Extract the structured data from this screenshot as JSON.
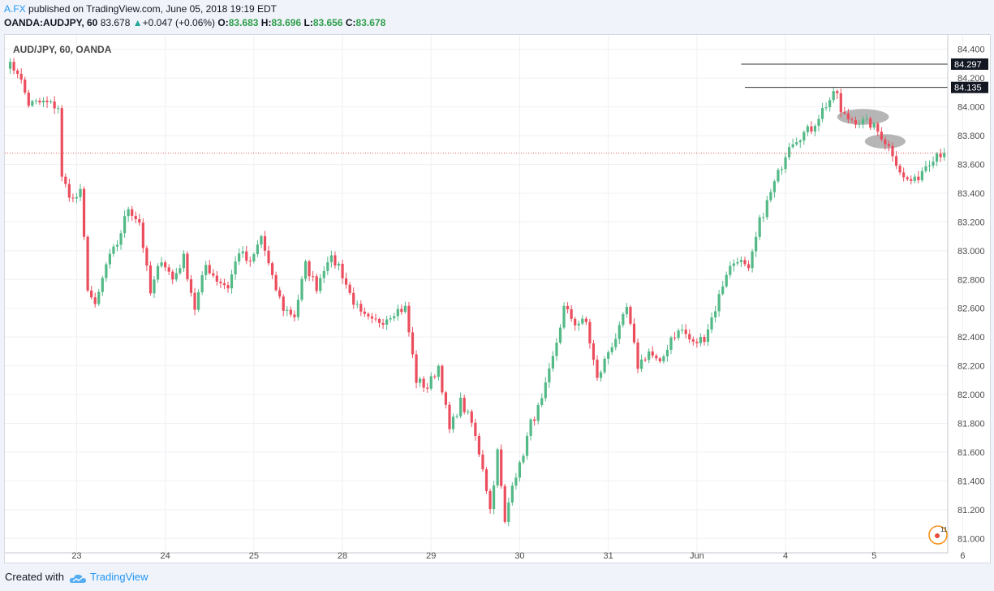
{
  "header": {
    "author": "A.FX",
    "published_text": "published on TradingView.com, June 05, 2018 19:19 EDT",
    "symbol_line": "OANDA:AUDJPY, 60",
    "last": "83.678",
    "arrow": "▲",
    "change": "+0.047 (+0.06%)",
    "o_label": "O:",
    "o_value": "83.683",
    "h_label": "H:",
    "h_value": "83.696",
    "l_label": "L:",
    "l_value": "83.656",
    "c_label": "C:",
    "c_value": "83.678"
  },
  "footer": {
    "created_with": "Created with",
    "brand": "TradingView"
  },
  "colors": {
    "up": "#53b987",
    "down": "#eb4d5c",
    "grid": "#eef0f4",
    "price_line": "#e05a5a"
  },
  "chart_data": {
    "type": "candlestick",
    "title": "AUD/JPY, 60, OANDA",
    "ylim": [
      80.9,
      84.5
    ],
    "y_ticks": [
      81.0,
      81.2,
      81.4,
      81.6,
      81.8,
      82.0,
      82.2,
      82.4,
      82.6,
      82.8,
      83.0,
      83.2,
      83.4,
      83.6,
      83.8,
      84.0,
      84.2,
      84.4
    ],
    "x_ticks": [
      {
        "label": "23",
        "bar": 19
      },
      {
        "label": "24",
        "bar": 43
      },
      {
        "label": "25",
        "bar": 67
      },
      {
        "label": "28",
        "bar": 91
      },
      {
        "label": "29",
        "bar": 115
      },
      {
        "label": "30",
        "bar": 139
      },
      {
        "label": "31",
        "bar": 163
      },
      {
        "label": "Jun",
        "bar": 187
      },
      {
        "label": "4",
        "bar": 211
      },
      {
        "label": "5",
        "bar": 235
      },
      {
        "label": "6",
        "bar": 259
      }
    ],
    "last_price": 83.678,
    "levels": [
      {
        "value": 84.297,
        "label": "84.297",
        "from_bar": 199
      },
      {
        "value": 84.135,
        "label": "84.135",
        "from_bar": 200
      }
    ],
    "annotations": [
      {
        "type": "ellipse",
        "bar": 232,
        "price": 83.93,
        "bars_wide": 14,
        "price_tall": 0.11
      },
      {
        "type": "ellipse",
        "bar": 238,
        "price": 83.76,
        "bars_wide": 11,
        "price_tall": 0.1
      }
    ],
    "anchors": [
      [
        0,
        84.3
      ],
      [
        3,
        84.25
      ],
      [
        6,
        84.02
      ],
      [
        10,
        84.03
      ],
      [
        14,
        84.0
      ],
      [
        15,
        83.5
      ],
      [
        18,
        83.35
      ],
      [
        20,
        83.4
      ],
      [
        22,
        82.75
      ],
      [
        24,
        82.6
      ],
      [
        27,
        82.9
      ],
      [
        30,
        83.05
      ],
      [
        33,
        83.3
      ],
      [
        36,
        83.2
      ],
      [
        39,
        82.7
      ],
      [
        42,
        82.95
      ],
      [
        45,
        82.8
      ],
      [
        48,
        82.95
      ],
      [
        51,
        82.6
      ],
      [
        54,
        82.9
      ],
      [
        57,
        82.8
      ],
      [
        60,
        82.75
      ],
      [
        63,
        83.0
      ],
      [
        66,
        82.9
      ],
      [
        69,
        83.1
      ],
      [
        72,
        82.8
      ],
      [
        75,
        82.6
      ],
      [
        78,
        82.55
      ],
      [
        81,
        82.9
      ],
      [
        84,
        82.75
      ],
      [
        87,
        82.95
      ],
      [
        90,
        82.9
      ],
      [
        93,
        82.7
      ],
      [
        96,
        82.55
      ],
      [
        99,
        82.5
      ],
      [
        102,
        82.52
      ],
      [
        105,
        82.58
      ],
      [
        108,
        82.6
      ],
      [
        111,
        82.1
      ],
      [
        114,
        82.05
      ],
      [
        117,
        82.2
      ],
      [
        120,
        81.75
      ],
      [
        123,
        81.95
      ],
      [
        126,
        81.8
      ],
      [
        129,
        81.5
      ],
      [
        131,
        81.2
      ],
      [
        133,
        81.6
      ],
      [
        135,
        81.1
      ],
      [
        137,
        81.4
      ],
      [
        139,
        81.5
      ],
      [
        142,
        81.8
      ],
      [
        145,
        81.95
      ],
      [
        148,
        82.25
      ],
      [
        151,
        82.6
      ],
      [
        154,
        82.5
      ],
      [
        157,
        82.5
      ],
      [
        160,
        82.1
      ],
      [
        163,
        82.3
      ],
      [
        166,
        82.45
      ],
      [
        168,
        82.6
      ],
      [
        171,
        82.2
      ],
      [
        174,
        82.3
      ],
      [
        177,
        82.2
      ],
      [
        180,
        82.4
      ],
      [
        183,
        82.45
      ],
      [
        186,
        82.35
      ],
      [
        189,
        82.4
      ],
      [
        192,
        82.6
      ],
      [
        195,
        82.85
      ],
      [
        198,
        82.95
      ],
      [
        201,
        82.85
      ],
      [
        204,
        83.2
      ],
      [
        207,
        83.4
      ],
      [
        210,
        83.6
      ],
      [
        212,
        83.75
      ],
      [
        215,
        83.8
      ],
      [
        218,
        83.85
      ],
      [
        221,
        83.98
      ],
      [
        223,
        84.05
      ],
      [
        225,
        84.1
      ],
      [
        226,
        83.95
      ],
      [
        228,
        83.92
      ],
      [
        231,
        83.9
      ],
      [
        234,
        83.88
      ],
      [
        237,
        83.8
      ],
      [
        240,
        83.68
      ],
      [
        243,
        83.5
      ],
      [
        246,
        83.48
      ],
      [
        249,
        83.6
      ],
      [
        252,
        83.68
      ],
      [
        254,
        83.678
      ]
    ]
  }
}
